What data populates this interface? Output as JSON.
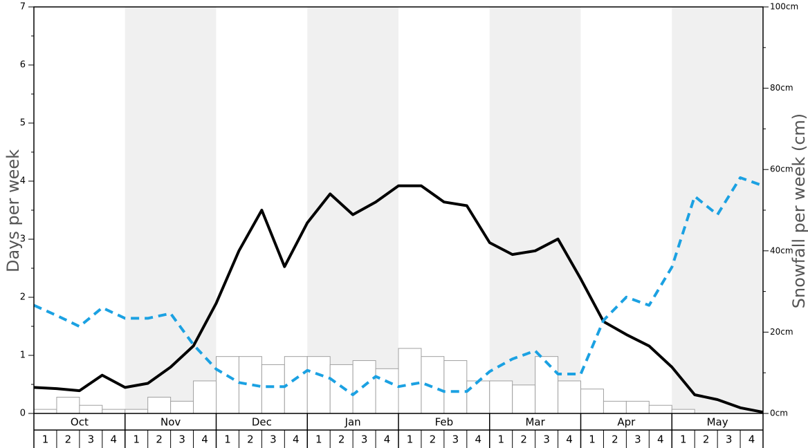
{
  "chart_data": {
    "type": "bar+line",
    "title": "",
    "months": [
      "Oct",
      "Nov",
      "Dec",
      "Jan",
      "Feb",
      "Mar",
      "Apr",
      "May"
    ],
    "weeks": [
      "1",
      "2",
      "3",
      "4"
    ],
    "ylabel_left": "Days per week",
    "ylabel_right": "Snowfall per week (cm)",
    "ylim_left": [
      0,
      7
    ],
    "ylim_right": [
      0,
      100
    ],
    "yticks_left": [
      "0",
      "1",
      "2",
      "3",
      "4",
      "5",
      "6",
      "7"
    ],
    "yticks_right": [
      "0cm",
      "20cm",
      "40cm",
      "60cm",
      "80cm",
      "100cm"
    ],
    "shaded_months": [
      "Nov",
      "Jan",
      "Mar",
      "May"
    ],
    "series": [
      {
        "kind": "bar",
        "axis": "right",
        "values": [
          1,
          4,
          2,
          1,
          1,
          4,
          3,
          8,
          14,
          14,
          12,
          14,
          14,
          12,
          13,
          11,
          16,
          14,
          13,
          8,
          8,
          7,
          14,
          8,
          6,
          3,
          3,
          2,
          1,
          0,
          0,
          0
        ]
      },
      {
        "kind": "line",
        "style": "solid",
        "color": "#000000",
        "axis": "right",
        "values": [
          6.4,
          6.1,
          5.6,
          9.4,
          6.4,
          7.4,
          11.4,
          16.6,
          27.1,
          40.0,
          50.0,
          36.1,
          46.9,
          54.0,
          48.9,
          52.0,
          56.0,
          56.0,
          52.0,
          51.1,
          42.0,
          39.1,
          40.0,
          42.9,
          33.1,
          22.6,
          19.4,
          16.6,
          11.4,
          4.6,
          3.4,
          1.4,
          0.3
        ]
      },
      {
        "kind": "line",
        "style": "dashed",
        "color": "#1ba1e2",
        "axis": "right",
        "values": [
          26.6,
          24.1,
          21.4,
          26.0,
          23.4,
          23.4,
          24.6,
          16.9,
          10.9,
          7.6,
          6.6,
          6.6,
          10.6,
          8.6,
          4.6,
          9.1,
          6.6,
          7.6,
          5.4,
          5.4,
          10.3,
          13.4,
          15.4,
          9.7,
          9.7,
          22.9,
          28.6,
          26.6,
          36.0,
          53.4,
          48.9,
          58.0,
          56.0
        ]
      }
    ]
  }
}
